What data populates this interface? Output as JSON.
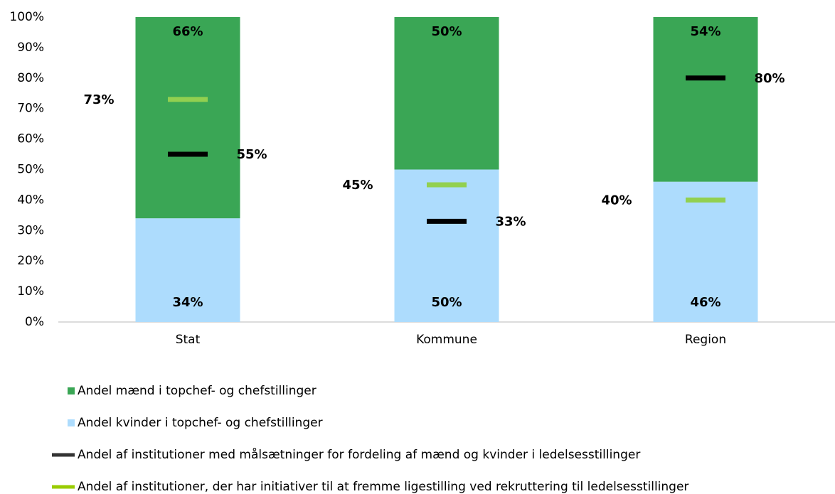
{
  "chart_data": {
    "type": "bar",
    "categories": [
      "Stat",
      "Kommune",
      "Region"
    ],
    "stacked": true,
    "ylim": [
      0,
      100
    ],
    "yticks": [
      {
        "value": 0,
        "label": "0%"
      },
      {
        "value": 10,
        "label": "10%"
      },
      {
        "value": 20,
        "label": "20%"
      },
      {
        "value": 30,
        "label": "30%"
      },
      {
        "value": 40,
        "label": "40%"
      },
      {
        "value": 50,
        "label": "50%"
      },
      {
        "value": 60,
        "label": "60%"
      },
      {
        "value": 70,
        "label": "70%"
      },
      {
        "value": 80,
        "label": "80%"
      },
      {
        "value": 90,
        "label": "90%"
      },
      {
        "value": 100,
        "label": "100%"
      }
    ],
    "legend": "bottom",
    "series": [
      {
        "name": "Andel mænd i topchef- og chefstillinger",
        "type": "bar",
        "color": "#3aa655",
        "values": [
          66,
          50,
          54
        ],
        "value_labels": [
          "66%",
          "50%",
          "54%"
        ]
      },
      {
        "name": "Andel kvinder i topchef- og chefstillinger",
        "type": "bar",
        "color": "#addcfd",
        "values": [
          34,
          50,
          46
        ],
        "value_labels": [
          "34%",
          "50%",
          "46%"
        ]
      },
      {
        "name": "Andel af institutioner med målsætninger for fordeling af mænd og kvinder i ledelsesstillinger",
        "type": "marker",
        "color": "#000000",
        "values": [
          55,
          33,
          80
        ],
        "value_labels": [
          "55%",
          "33%",
          "80%"
        ]
      },
      {
        "name": "Andel af institutioner, der har initiativer til at fremme ligestilling ved rekruttering til ledelsesstillinger",
        "type": "marker",
        "color": "#92d050",
        "values": [
          73,
          45,
          40
        ],
        "value_labels": [
          "73%",
          "45%",
          "40%"
        ]
      }
    ]
  }
}
